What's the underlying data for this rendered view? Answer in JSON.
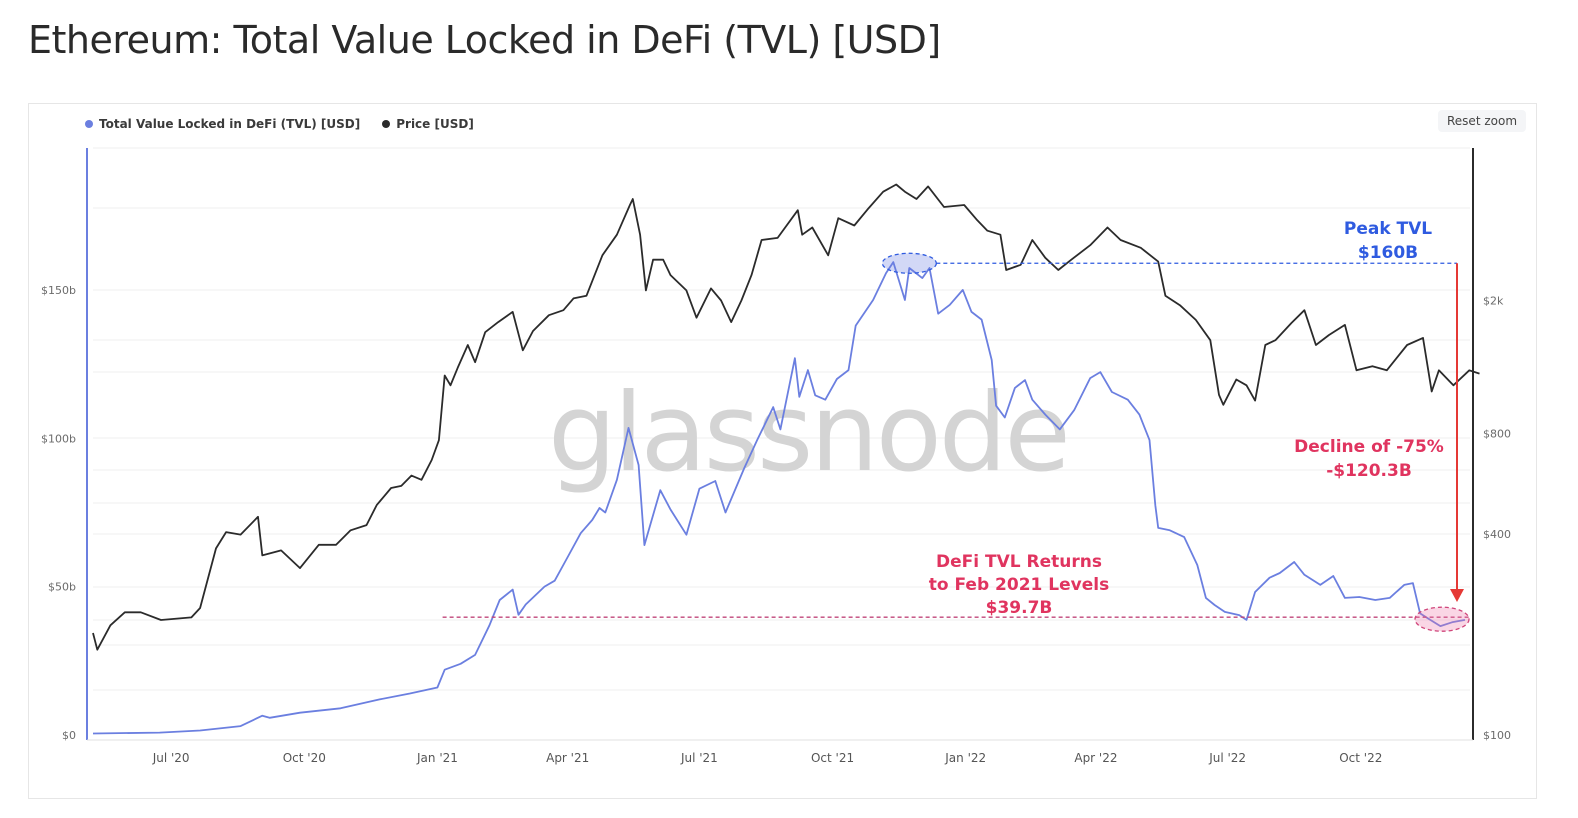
{
  "page": {
    "title": "Ethereum: Total Value Locked in DeFi (TVL) [USD]",
    "reset_zoom_label": "Reset zoom",
    "watermark": "glassnode"
  },
  "legend": [
    {
      "label": "Total Value Locked in DeFi (TVL) [USD]",
      "color": "#6b7fe0",
      "icon": "circle-dot-icon"
    },
    {
      "label": "Price [USD]",
      "color": "#2b2b2b",
      "icon": "circle-dot-icon"
    }
  ],
  "chart_data": {
    "type": "line",
    "title": "Ethereum: Total Value Locked in DeFi (TVL) [USD]",
    "xlabel": "",
    "x_range": [
      "2020-05-08",
      "2022-12-12"
    ],
    "x_ticks": [
      {
        "date": "2020-07-01",
        "label": "Jul '20"
      },
      {
        "date": "2020-10-01",
        "label": "Oct '20"
      },
      {
        "date": "2021-01-01",
        "label": "Jan '21"
      },
      {
        "date": "2021-04-01",
        "label": "Apr '21"
      },
      {
        "date": "2021-07-01",
        "label": "Jul '21"
      },
      {
        "date": "2021-10-01",
        "label": "Oct '21"
      },
      {
        "date": "2022-01-01",
        "label": "Jan '22"
      },
      {
        "date": "2022-04-01",
        "label": "Apr '22"
      },
      {
        "date": "2022-07-01",
        "label": "Jul '22"
      },
      {
        "date": "2022-10-01",
        "label": "Oct '22"
      }
    ],
    "y_left": {
      "label": "TVL",
      "unit": "billion USD",
      "scale": "linear",
      "range": [
        0,
        200
      ],
      "ticks": [
        {
          "value": 0,
          "label": "$0"
        },
        {
          "value": 50,
          "label": "$50b"
        },
        {
          "value": 100,
          "label": "$100b"
        },
        {
          "value": 150,
          "label": "$150b"
        }
      ]
    },
    "y_right": {
      "label": "Price",
      "unit": "USD",
      "scale": "log",
      "range": [
        100,
        6000
      ],
      "ticks": [
        {
          "value": 100,
          "label": "$100"
        },
        {
          "value": 400,
          "label": "$400"
        },
        {
          "value": 800,
          "label": "$800"
        },
        {
          "value": 2000,
          "label": "$2k"
        }
      ]
    },
    "grid": true,
    "legend_position": "top-left",
    "series": [
      {
        "name": "Total Value Locked in DeFi (TVL) [USD]",
        "axis": "left",
        "color": "#6b7fe0",
        "points": [
          [
            "2020-05-08",
            0.5
          ],
          [
            "2020-06-23",
            0.8
          ],
          [
            "2020-07-21",
            1.5
          ],
          [
            "2020-08-18",
            3.0
          ],
          [
            "2020-09-02",
            6.5
          ],
          [
            "2020-09-07",
            5.8
          ],
          [
            "2020-09-28",
            7.5
          ],
          [
            "2020-10-26",
            9.0
          ],
          [
            "2020-11-22",
            12.0
          ],
          [
            "2020-12-13",
            14.0
          ],
          [
            "2021-01-01",
            16.0
          ],
          [
            "2021-01-06",
            22.0
          ],
          [
            "2021-01-17",
            24.0
          ],
          [
            "2021-01-27",
            27.0
          ],
          [
            "2021-02-06",
            37.0
          ],
          [
            "2021-02-13",
            45.5
          ],
          [
            "2021-02-22",
            49.0
          ],
          [
            "2021-02-26",
            40.5
          ],
          [
            "2021-03-03",
            44.0
          ],
          [
            "2021-03-16",
            50.0
          ],
          [
            "2021-03-23",
            52.0
          ],
          [
            "2021-04-01",
            60.0
          ],
          [
            "2021-04-10",
            68.0
          ],
          [
            "2021-04-18",
            72.5
          ],
          [
            "2021-04-23",
            76.5
          ],
          [
            "2021-04-27",
            75.0
          ],
          [
            "2021-05-05",
            86.0
          ],
          [
            "2021-05-13",
            103.5
          ],
          [
            "2021-05-20",
            91.0
          ],
          [
            "2021-05-24",
            64.0
          ],
          [
            "2021-06-04",
            82.5
          ],
          [
            "2021-06-11",
            76.0
          ],
          [
            "2021-06-22",
            67.5
          ],
          [
            "2021-07-01",
            83.0
          ],
          [
            "2021-07-12",
            85.6
          ],
          [
            "2021-07-19",
            75.0
          ],
          [
            "2021-08-01",
            90.0
          ],
          [
            "2021-08-10",
            99.5
          ],
          [
            "2021-08-21",
            110.5
          ],
          [
            "2021-08-26",
            103.0
          ],
          [
            "2021-09-05",
            127.0
          ],
          [
            "2021-09-08",
            114.0
          ],
          [
            "2021-09-14",
            123.0
          ],
          [
            "2021-09-19",
            114.5
          ],
          [
            "2021-09-26",
            113.0
          ],
          [
            "2021-10-04",
            120.0
          ],
          [
            "2021-10-12",
            123.0
          ],
          [
            "2021-10-17",
            138.0
          ],
          [
            "2021-10-29",
            146.6
          ],
          [
            "2021-11-07",
            155.7
          ],
          [
            "2021-11-12",
            159.4
          ],
          [
            "2021-11-20",
            146.6
          ],
          [
            "2021-11-23",
            157.4
          ],
          [
            "2021-12-02",
            154.0
          ],
          [
            "2021-12-07",
            157.4
          ],
          [
            "2021-12-13",
            142.0
          ],
          [
            "2021-12-21",
            145.0
          ],
          [
            "2021-12-30",
            150.0
          ],
          [
            "2022-01-05",
            142.6
          ],
          [
            "2022-01-12",
            140.0
          ],
          [
            "2022-01-19",
            126.4
          ],
          [
            "2022-01-22",
            111.0
          ],
          [
            "2022-01-28",
            107.0
          ],
          [
            "2022-02-04",
            117.0
          ],
          [
            "2022-02-11",
            119.6
          ],
          [
            "2022-02-16",
            113.0
          ],
          [
            "2022-02-25",
            108.0
          ],
          [
            "2022-03-07",
            103.0
          ],
          [
            "2022-03-17",
            109.5
          ],
          [
            "2022-03-28",
            120.3
          ],
          [
            "2022-04-04",
            122.3
          ],
          [
            "2022-04-12",
            115.6
          ],
          [
            "2022-04-23",
            113.0
          ],
          [
            "2022-05-01",
            108.0
          ],
          [
            "2022-05-08",
            99.4
          ],
          [
            "2022-05-12",
            77.5
          ],
          [
            "2022-05-14",
            69.8
          ],
          [
            "2022-05-22",
            69.0
          ],
          [
            "2022-06-01",
            66.7
          ],
          [
            "2022-06-10",
            57.3
          ],
          [
            "2022-06-16",
            46.2
          ],
          [
            "2022-06-22",
            43.8
          ],
          [
            "2022-06-29",
            41.5
          ],
          [
            "2022-07-09",
            40.4
          ],
          [
            "2022-07-14",
            38.8
          ],
          [
            "2022-07-20",
            48.2
          ],
          [
            "2022-07-30",
            53.0
          ],
          [
            "2022-08-06",
            54.6
          ],
          [
            "2022-08-16",
            58.3
          ],
          [
            "2022-08-23",
            54.0
          ],
          [
            "2022-09-03",
            50.6
          ],
          [
            "2022-09-12",
            53.6
          ],
          [
            "2022-09-20",
            46.2
          ],
          [
            "2022-09-30",
            46.5
          ],
          [
            "2022-10-11",
            45.5
          ],
          [
            "2022-10-21",
            46.2
          ],
          [
            "2022-10-31",
            50.6
          ],
          [
            "2022-11-06",
            51.2
          ],
          [
            "2022-11-11",
            41.0
          ],
          [
            "2022-11-18",
            38.8
          ],
          [
            "2022-11-25",
            36.7
          ],
          [
            "2022-12-03",
            38.0
          ],
          [
            "2022-12-12",
            38.8
          ]
        ]
      },
      {
        "name": "Price [USD]",
        "axis": "right",
        "color": "#2b2b2b",
        "points": [
          [
            "2020-05-08",
            202
          ],
          [
            "2020-05-11",
            180
          ],
          [
            "2020-05-20",
            213
          ],
          [
            "2020-05-30",
            233
          ],
          [
            "2020-06-10",
            233
          ],
          [
            "2020-06-24",
            221
          ],
          [
            "2020-07-15",
            225
          ],
          [
            "2020-07-21",
            240
          ],
          [
            "2020-08-01",
            362
          ],
          [
            "2020-08-08",
            405
          ],
          [
            "2020-08-18",
            398
          ],
          [
            "2020-08-30",
            450
          ],
          [
            "2020-09-02",
            345
          ],
          [
            "2020-09-15",
            357
          ],
          [
            "2020-09-28",
            316
          ],
          [
            "2020-10-11",
            371
          ],
          [
            "2020-10-23",
            371
          ],
          [
            "2020-11-02",
            410
          ],
          [
            "2020-11-13",
            425
          ],
          [
            "2020-11-20",
            488
          ],
          [
            "2020-11-30",
            549
          ],
          [
            "2020-12-07",
            557
          ],
          [
            "2020-12-14",
            598
          ],
          [
            "2020-12-21",
            581
          ],
          [
            "2020-12-28",
            666
          ],
          [
            "2021-01-02",
            763
          ],
          [
            "2021-01-06",
            1192
          ],
          [
            "2021-01-10",
            1114
          ],
          [
            "2021-01-15",
            1257
          ],
          [
            "2021-01-22",
            1471
          ],
          [
            "2021-01-27",
            1307
          ],
          [
            "2021-02-03",
            1607
          ],
          [
            "2021-02-12",
            1723
          ],
          [
            "2021-02-22",
            1848
          ],
          [
            "2021-03-01",
            1418
          ],
          [
            "2021-03-08",
            1620
          ],
          [
            "2021-03-19",
            1807
          ],
          [
            "2021-03-29",
            1870
          ],
          [
            "2021-04-05",
            2029
          ],
          [
            "2021-04-14",
            2067
          ],
          [
            "2021-04-25",
            2731
          ],
          [
            "2021-05-05",
            3147
          ],
          [
            "2021-05-14",
            3861
          ],
          [
            "2021-05-16",
            4024
          ],
          [
            "2021-05-21",
            3147
          ],
          [
            "2021-05-25",
            2144
          ],
          [
            "2021-05-30",
            2649
          ],
          [
            "2021-06-06",
            2649
          ],
          [
            "2021-06-11",
            2382
          ],
          [
            "2021-06-22",
            2144
          ],
          [
            "2021-06-29",
            1776
          ],
          [
            "2021-07-09",
            2173
          ],
          [
            "2021-07-16",
            2000
          ],
          [
            "2021-07-23",
            1723
          ],
          [
            "2021-07-30",
            2000
          ],
          [
            "2021-08-06",
            2382
          ],
          [
            "2021-08-13",
            3034
          ],
          [
            "2021-08-24",
            3078
          ],
          [
            "2021-09-07",
            3727
          ],
          [
            "2021-09-10",
            3147
          ],
          [
            "2021-09-17",
            3307
          ],
          [
            "2021-09-28",
            2731
          ],
          [
            "2021-10-05",
            3525
          ],
          [
            "2021-10-16",
            3353
          ],
          [
            "2021-10-26",
            3781
          ],
          [
            "2021-11-05",
            4232
          ],
          [
            "2021-11-14",
            4449
          ],
          [
            "2021-11-20",
            4232
          ],
          [
            "2021-11-28",
            4024
          ],
          [
            "2021-12-06",
            4389
          ],
          [
            "2021-12-17",
            3810
          ],
          [
            "2021-12-31",
            3861
          ],
          [
            "2022-01-09",
            3475
          ],
          [
            "2022-01-16",
            3235
          ],
          [
            "2022-01-25",
            3147
          ],
          [
            "2022-01-29",
            2468
          ],
          [
            "2022-02-08",
            2557
          ],
          [
            "2022-02-16",
            3034
          ],
          [
            "2022-02-25",
            2683
          ],
          [
            "2022-03-06",
            2468
          ],
          [
            "2022-03-15",
            2649
          ],
          [
            "2022-03-28",
            2928
          ],
          [
            "2022-04-09",
            3307
          ],
          [
            "2022-04-18",
            3034
          ],
          [
            "2022-05-02",
            2876
          ],
          [
            "2022-05-14",
            2615
          ],
          [
            "2022-05-19",
            2067
          ],
          [
            "2022-05-29",
            1936
          ],
          [
            "2022-06-09",
            1749
          ],
          [
            "2022-06-19",
            1521
          ],
          [
            "2022-06-25",
            1043
          ],
          [
            "2022-06-28",
            974
          ],
          [
            "2022-07-07",
            1160
          ],
          [
            "2022-07-14",
            1114
          ],
          [
            "2022-07-20",
            1003
          ],
          [
            "2022-07-27",
            1471
          ],
          [
            "2022-08-03",
            1521
          ],
          [
            "2022-08-14",
            1711
          ],
          [
            "2022-08-23",
            1870
          ],
          [
            "2022-08-31",
            1471
          ],
          [
            "2022-09-09",
            1576
          ],
          [
            "2022-09-20",
            1690
          ],
          [
            "2022-09-28",
            1236
          ],
          [
            "2022-10-09",
            1271
          ],
          [
            "2022-10-19",
            1236
          ],
          [
            "2022-11-02",
            1471
          ],
          [
            "2022-11-13",
            1545
          ],
          [
            "2022-11-19",
            1068
          ],
          [
            "2022-11-24",
            1236
          ],
          [
            "2022-12-04",
            1114
          ],
          [
            "2022-12-15",
            1236
          ],
          [
            "2022-12-22",
            1208
          ]
        ]
      }
    ],
    "annotations": {
      "peak": {
        "label_line1": "Peak TVL",
        "label_line2": "$160B",
        "date": "2021-11-12",
        "value": 160,
        "color": "#2f5be0"
      },
      "decline": {
        "label_line1": "Decline of -75%",
        "label_line2": "-$120.3B",
        "color": "#e0345f",
        "arrow_color": "#e53935"
      },
      "low": {
        "label_line1": "DeFi TVL Returns",
        "label_line2": "to Feb 2021 Levels",
        "label_line3": "$39.7B",
        "value": 39.7,
        "start_date": "2021-01-17",
        "color": "#e0345f"
      }
    }
  }
}
